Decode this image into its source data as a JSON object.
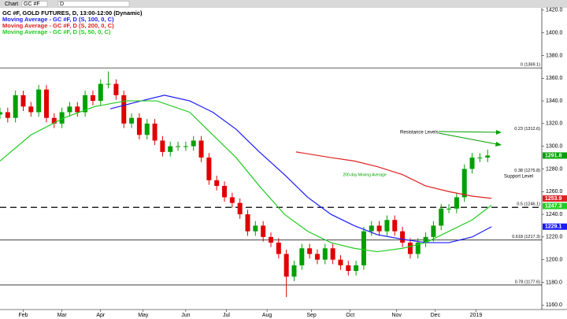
{
  "toolbar": {
    "chart": "Chart",
    "symbol": "GC #F",
    "interval": "D"
  },
  "chart_data": {
    "type": "candlestick",
    "legend": [
      "GC #F, GOLD FUTURES, D, 13:00-12:00 (Dynamic)"
    ],
    "xlim": [
      0,
      280
    ],
    "ylim": [
      1156,
      1422
    ],
    "yticks": [
      {
        "value": 1160,
        "label": "1160.0"
      },
      {
        "value": 1180,
        "label": "1180.0"
      },
      {
        "value": 1200,
        "label": "1200.0"
      },
      {
        "value": 1220,
        "label": "1220.0"
      },
      {
        "value": 1240,
        "label": "1240.0"
      },
      {
        "value": 1260,
        "label": "1260.0"
      },
      {
        "value": 1280,
        "label": "1280.0"
      },
      {
        "value": 1300,
        "label": "1300.0"
      },
      {
        "value": 1320,
        "label": "1320.0"
      },
      {
        "value": 1340,
        "label": "1340.0"
      },
      {
        "value": 1360,
        "label": "1360.0"
      },
      {
        "value": 1380,
        "label": "1380.0"
      },
      {
        "value": 1400,
        "label": "1400.0"
      },
      {
        "value": 1420,
        "label": "1420.0"
      }
    ],
    "xticks": [
      {
        "value": 12,
        "label": "Feb"
      },
      {
        "value": 32,
        "label": "Mar"
      },
      {
        "value": 52,
        "label": "Apr"
      },
      {
        "value": 74,
        "label": "May"
      },
      {
        "value": 96,
        "label": "Jun"
      },
      {
        "value": 117,
        "label": "Jul"
      },
      {
        "value": 138,
        "label": "Aug"
      },
      {
        "value": 161,
        "label": "Sep"
      },
      {
        "value": 181,
        "label": "Oct"
      },
      {
        "value": 205,
        "label": "Nov"
      },
      {
        "value": 225,
        "label": "Dec"
      },
      {
        "value": 246,
        "label": "2019"
      }
    ],
    "up_color": "#00a000",
    "down_color": "#e00000",
    "candles": {
      "x": [
        0,
        4,
        8,
        12,
        16,
        20,
        24,
        28,
        32,
        36,
        40,
        44,
        48,
        52,
        56,
        60,
        64,
        68,
        72,
        76,
        80,
        84,
        88,
        92,
        96,
        100,
        104,
        108,
        112,
        116,
        120,
        124,
        128,
        132,
        136,
        140,
        144,
        148,
        152,
        156,
        160,
        164,
        168,
        172,
        176,
        180,
        184,
        188,
        192,
        196,
        200,
        204,
        208,
        212,
        216,
        220,
        224,
        228,
        232,
        236,
        240,
        244,
        248,
        252
      ],
      "open": [
        1328,
        1330,
        1325,
        1345,
        1335,
        1330,
        1350,
        1325,
        1320,
        1330,
        1335,
        1330,
        1345,
        1340,
        1355,
        1355,
        1345,
        1320,
        1325,
        1310,
        1320,
        1305,
        1295,
        1300,
        1300,
        1300,
        1305,
        1290,
        1270,
        1265,
        1255,
        1250,
        1240,
        1225,
        1230,
        1220,
        1215,
        1205,
        1185,
        1195,
        1210,
        1205,
        1200,
        1210,
        1200,
        1195,
        1190,
        1195,
        1225,
        1230,
        1225,
        1235,
        1225,
        1215,
        1205,
        1215,
        1220,
        1230,
        1245,
        1245,
        1255,
        1280,
        1290,
        1290
      ],
      "high": [
        1334,
        1334,
        1349,
        1349,
        1339,
        1354,
        1354,
        1329,
        1334,
        1339,
        1339,
        1349,
        1349,
        1359,
        1366,
        1359,
        1349,
        1329,
        1329,
        1324,
        1324,
        1309,
        1304,
        1304,
        1304,
        1309,
        1309,
        1294,
        1274,
        1269,
        1259,
        1254,
        1244,
        1234,
        1234,
        1224,
        1219,
        1209,
        1199,
        1214,
        1214,
        1209,
        1214,
        1214,
        1204,
        1199,
        1199,
        1229,
        1234,
        1234,
        1239,
        1239,
        1229,
        1219,
        1219,
        1224,
        1234,
        1249,
        1249,
        1259,
        1284,
        1294,
        1294,
        1297
      ],
      "low": [
        1324,
        1321,
        1321,
        1331,
        1326,
        1326,
        1321,
        1316,
        1316,
        1326,
        1326,
        1326,
        1336,
        1336,
        1351,
        1341,
        1316,
        1316,
        1306,
        1306,
        1301,
        1291,
        1291,
        1296,
        1296,
        1296,
        1286,
        1266,
        1261,
        1251,
        1246,
        1236,
        1221,
        1221,
        1216,
        1211,
        1201,
        1167,
        1181,
        1191,
        1201,
        1196,
        1196,
        1196,
        1191,
        1186,
        1186,
        1191,
        1221,
        1221,
        1221,
        1221,
        1211,
        1201,
        1201,
        1211,
        1216,
        1226,
        1241,
        1241,
        1251,
        1276,
        1286,
        1286
      ],
      "close": [
        1330,
        1325,
        1345,
        1335,
        1330,
        1350,
        1325,
        1320,
        1330,
        1335,
        1330,
        1345,
        1340,
        1355,
        1355,
        1345,
        1320,
        1325,
        1310,
        1320,
        1305,
        1295,
        1300,
        1300,
        1300,
        1305,
        1290,
        1270,
        1265,
        1255,
        1250,
        1240,
        1225,
        1230,
        1220,
        1215,
        1205,
        1185,
        1195,
        1210,
        1205,
        1200,
        1210,
        1200,
        1195,
        1190,
        1195,
        1225,
        1230,
        1225,
        1235,
        1225,
        1215,
        1205,
        1215,
        1220,
        1230,
        1245,
        1245,
        1255,
        1280,
        1290,
        1290,
        1291.8
      ]
    },
    "series": [
      {
        "name": "Moving Average - GC #F, D (S, 100, 0, C)",
        "color": "#1a1aff",
        "x": [
          57,
          73,
          85,
          98,
          110,
          122,
          134,
          147,
          159,
          171,
          183,
          195,
          208,
          220,
          232,
          244,
          254
        ],
        "values": [
          1333,
          1340,
          1345,
          1340,
          1330,
          1315,
          1295,
          1275,
          1255,
          1240,
          1230,
          1222,
          1218,
          1215,
          1215,
          1220,
          1229
        ]
      },
      {
        "name": "Moving Average - GC #F, D (S, 200, 0, C)",
        "color": "#e02020",
        "x": [
          153,
          171,
          183,
          195,
          208,
          220,
          232,
          244,
          254
        ],
        "values": [
          1295,
          1290,
          1287,
          1282,
          1275,
          1265,
          1260,
          1256,
          1254
        ]
      },
      {
        "name": "Moving Average - GC #F, D (S, 50, 0, C)",
        "color": "#22cc22",
        "x": [
          0,
          16,
          33,
          49,
          65,
          81,
          98,
          110,
          122,
          134,
          147,
          159,
          171,
          183,
          195,
          208,
          220,
          232,
          244,
          254
        ],
        "values": [
          1287,
          1310,
          1325,
          1335,
          1340,
          1340,
          1330,
          1310,
          1290,
          1265,
          1240,
          1225,
          1215,
          1210,
          1207,
          1210,
          1215,
          1225,
          1235,
          1248
        ]
      }
    ],
    "fib_levels": [
      {
        "label": "0 (1369.1)",
        "value": 1369.1,
        "style": "solid"
      },
      {
        "label": "0.23 (1312.6)",
        "value": 1312.6,
        "style": "none"
      },
      {
        "label": "0.38 (1275.8)",
        "value": 1275.8,
        "style": "none"
      },
      {
        "label": "0.5 (1246.1)",
        "value": 1246.1,
        "style": "dashed"
      },
      {
        "label": "0.618 (1217.3)",
        "value": 1217.3,
        "style": "solid"
      },
      {
        "label": "0.78 (1177.6)",
        "value": 1177.6,
        "style": "solid"
      }
    ],
    "price_labels": [
      {
        "value": 1291.8,
        "color": "#00a000"
      },
      {
        "value": 1253.9,
        "color": "#e02020"
      },
      {
        "value": 1247.3,
        "color": "#22cc22"
      },
      {
        "value": 1229.1,
        "color": "#1a1aff"
      }
    ],
    "annotations": {
      "resistance": "Resistance Levels",
      "ma200": "200-day Moving Average",
      "support": "Support Level"
    }
  }
}
